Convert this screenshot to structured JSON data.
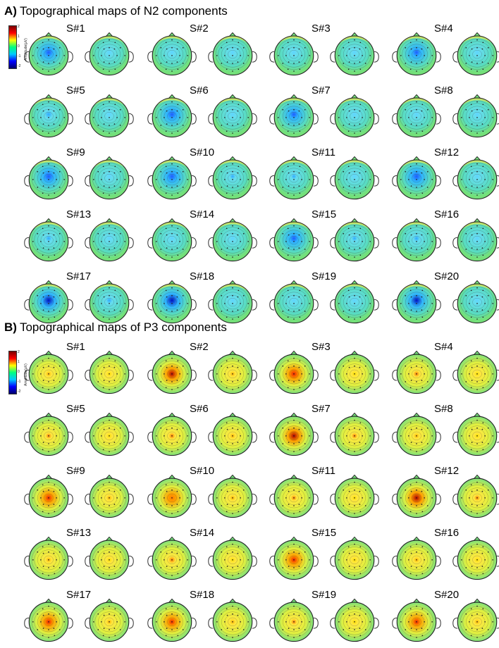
{
  "panel_a": {
    "letter": "A)",
    "title": "Topographical maps of N2 components",
    "colorbar": {
      "ticks": [
        "2",
        "1",
        "0",
        "-1",
        "-2"
      ],
      "label": "Amplitude(µV)"
    },
    "polarity": "negative"
  },
  "panel_b": {
    "letter": "B)",
    "title": "Topographical maps of P3 components",
    "colorbar": {
      "ticks": [
        "2",
        "1",
        "0",
        "-1",
        "-2"
      ],
      "label": "Amplitude(µV)"
    },
    "polarity": "positive"
  },
  "subjects": [
    "S#1",
    "S#2",
    "S#3",
    "S#4",
    "S#5",
    "S#6",
    "S#7",
    "S#8",
    "S#9",
    "S#10",
    "S#11",
    "S#12",
    "S#13",
    "S#14",
    "S#15",
    "S#16",
    "S#17",
    "S#18",
    "S#19",
    "S#20"
  ],
  "colors": {
    "background_field": "#6ee07a",
    "head_outline": "#222222",
    "electrode": "#222222"
  },
  "n2_intensity": {
    "left": [
      0.65,
      0.25,
      0.2,
      0.6,
      0.55,
      0.7,
      0.6,
      0.2,
      0.75,
      0.7,
      0.4,
      0.75,
      0.45,
      0.25,
      0.6,
      0.45,
      0.9,
      0.95,
      0.35,
      0.85
    ],
    "right": [
      0.35,
      0.25,
      0.2,
      0.35,
      0.35,
      0.35,
      0.3,
      0.25,
      0.35,
      0.4,
      0.3,
      0.3,
      0.35,
      0.3,
      0.4,
      0.3,
      0.45,
      0.35,
      0.3,
      0.35
    ]
  },
  "p3_intensity": {
    "left": [
      0.45,
      0.9,
      0.85,
      0.55,
      0.5,
      0.55,
      0.95,
      0.4,
      0.75,
      0.65,
      0.5,
      0.95,
      0.45,
      0.6,
      0.75,
      0.35,
      0.75,
      0.7,
      0.5,
      0.7
    ],
    "right": [
      0.25,
      0.45,
      0.25,
      0.25,
      0.25,
      0.35,
      0.5,
      0.2,
      0.4,
      0.35,
      0.25,
      0.5,
      0.3,
      0.3,
      0.3,
      0.2,
      0.4,
      0.35,
      0.3,
      0.35
    ]
  }
}
